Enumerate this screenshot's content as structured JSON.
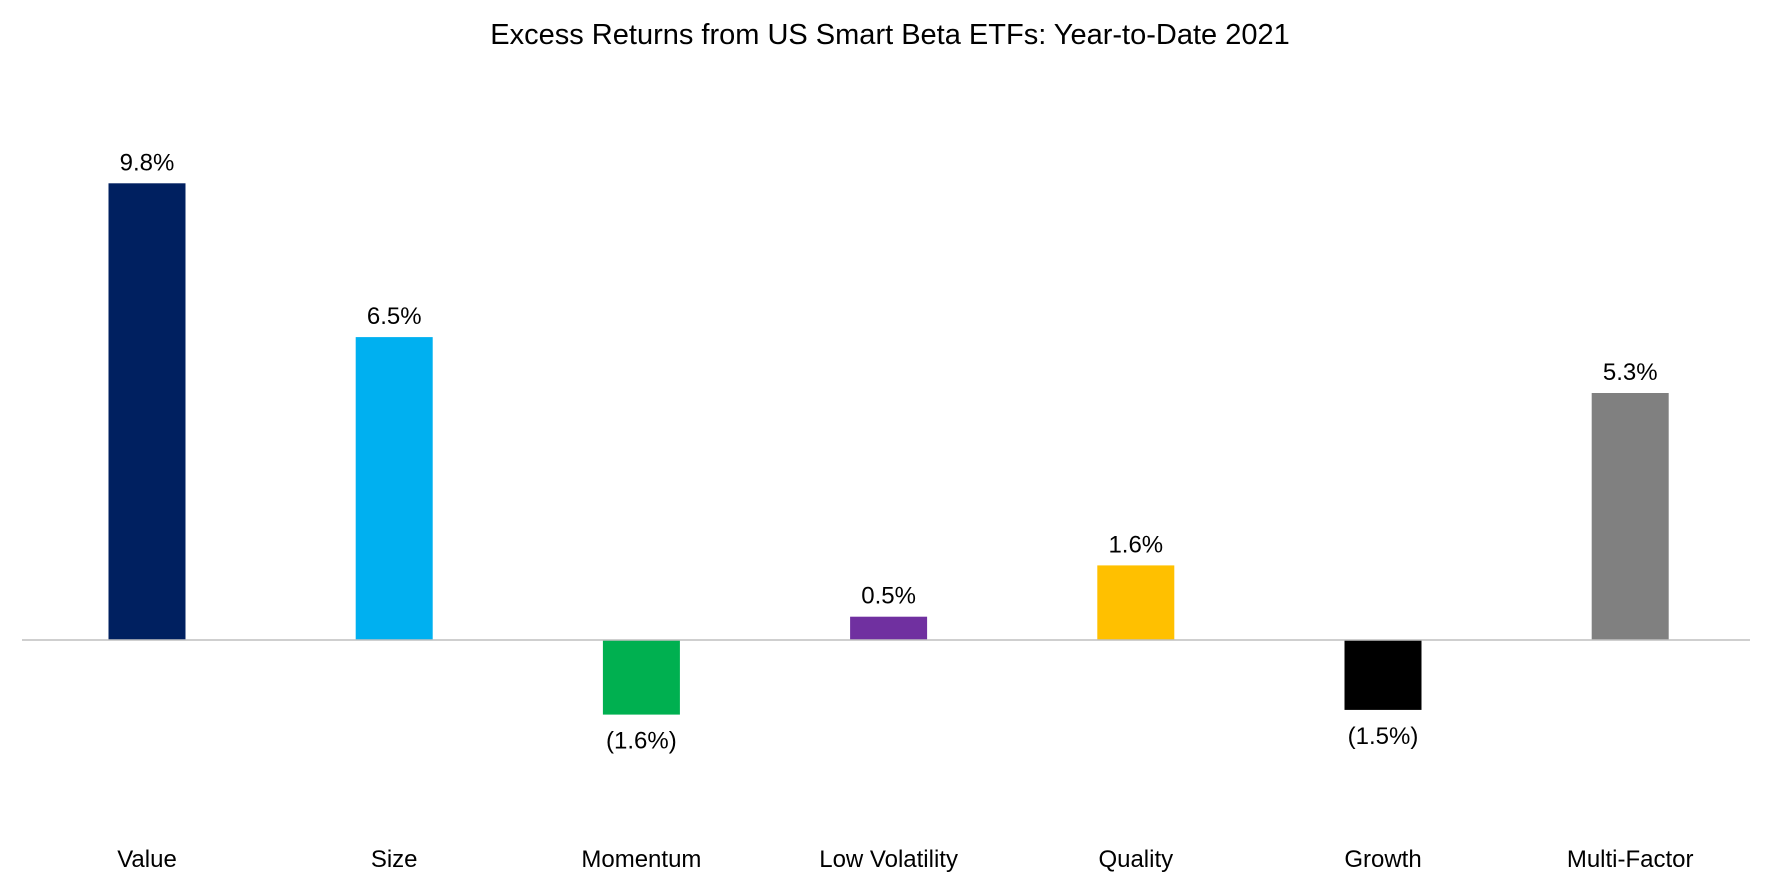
{
  "chart_data": {
    "type": "bar",
    "title": "Excess Returns from US Smart Beta ETFs: Year-to-Date 2021",
    "categories": [
      "Value",
      "Size",
      "Momentum",
      "Low Volatility",
      "Quality",
      "Growth",
      "Multi-Factor"
    ],
    "values": [
      9.8,
      6.5,
      -1.6,
      0.5,
      1.6,
      -1.5,
      5.3
    ],
    "data_labels": [
      "9.8%",
      "6.5%",
      "(1.6%)",
      "0.5%",
      "1.6%",
      "(1.5%)",
      "5.3%"
    ],
    "colors": [
      "#002060",
      "#00B0F0",
      "#00B050",
      "#7030A0",
      "#FFC000",
      "#000000",
      "#808080"
    ],
    "xlabel": "",
    "ylabel": "",
    "grid": false,
    "legend": "none",
    "axis_line_color": "#BFBFBF"
  }
}
